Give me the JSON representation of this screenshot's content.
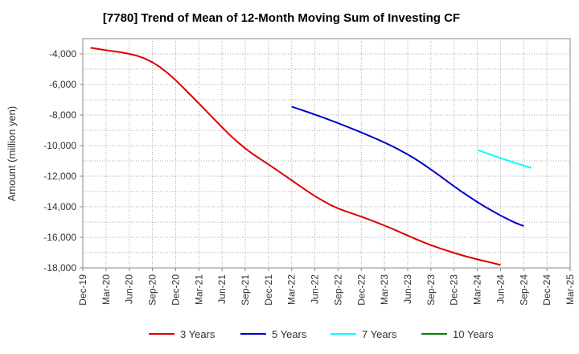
{
  "chart_data": {
    "type": "line",
    "title": "[7780]  Trend of Mean of 12-Month Moving Sum of Investing CF",
    "xlabel": "",
    "ylabel": "Amount (million yen)",
    "ylim": [
      -18000,
      -3000
    ],
    "yticks": [
      -4000,
      -6000,
      -8000,
      -10000,
      -12000,
      -14000,
      -16000,
      -18000
    ],
    "ytick_labels": [
      "-4,000",
      "-6,000",
      "-8,000",
      "-10,000",
      "-12,000",
      "-14,000",
      "-16,000",
      "-18,000"
    ],
    "xtick_labels": [
      "Dec-19",
      "Mar-20",
      "Jun-20",
      "Sep-20",
      "Dec-20",
      "Mar-21",
      "Jun-21",
      "Sep-21",
      "Dec-21",
      "Mar-22",
      "Jun-22",
      "Sep-22",
      "Dec-22",
      "Mar-23",
      "Jun-23",
      "Sep-23",
      "Dec-23",
      "Mar-24",
      "Jun-24",
      "Sep-24",
      "Dec-24",
      "Mar-25"
    ],
    "grid": true,
    "legend_position": "bottom",
    "series": [
      {
        "name": "3 Years",
        "color": "#dd0000",
        "start_index": 1,
        "values": [
          -3600,
          -3680,
          -3760,
          -3830,
          -3900,
          -4000,
          -4120,
          -4300,
          -4550,
          -4870,
          -5270,
          -5720,
          -6220,
          -6730,
          -7240,
          -7760,
          -8280,
          -8800,
          -9300,
          -9760,
          -10180,
          -10560,
          -10900,
          -11230,
          -11570,
          -11920,
          -12270,
          -12620,
          -12970,
          -13300,
          -13600,
          -13880,
          -14110,
          -14300,
          -14470,
          -14650,
          -14830,
          -15030,
          -15230,
          -15440,
          -15660,
          -15880,
          -16100,
          -16310,
          -16510,
          -16690,
          -16860,
          -17020,
          -17170,
          -17310,
          -17440,
          -17560,
          -17680,
          -17810
        ]
      },
      {
        "name": "5 Years",
        "color": "#0000cc",
        "start_index": 27,
        "values": [
          -7450,
          -7620,
          -7790,
          -7970,
          -8150,
          -8340,
          -8530,
          -8730,
          -8930,
          -9140,
          -9350,
          -9570,
          -9800,
          -10040,
          -10300,
          -10580,
          -10880,
          -11210,
          -11560,
          -11920,
          -12290,
          -12660,
          -13020,
          -13360,
          -13690,
          -14000,
          -14290,
          -14570,
          -14830,
          -15070,
          -15260
        ]
      },
      {
        "name": "7 Years",
        "color": "#00ffff",
        "start_index": 51,
        "values": [
          -10280,
          -10460,
          -10640,
          -10810,
          -10980,
          -11140,
          -11300,
          -11460
        ]
      },
      {
        "name": "10 Years",
        "color": "#008000",
        "start_index": 0,
        "values": []
      }
    ]
  }
}
